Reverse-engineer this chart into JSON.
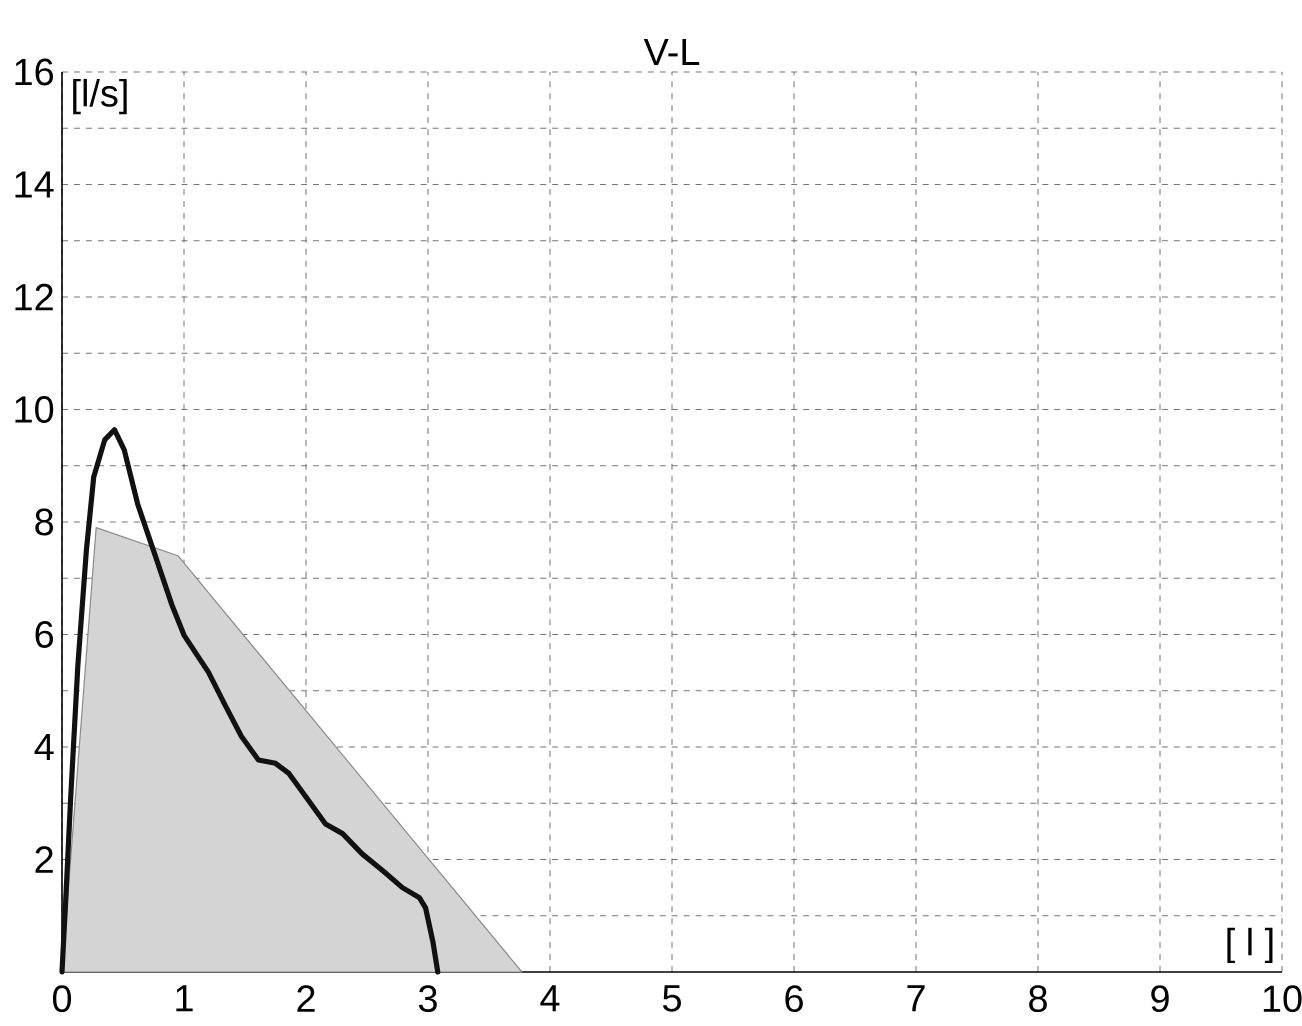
{
  "chart_data": {
    "type": "line",
    "title": "V-L",
    "xlabel": "[ l ]",
    "ylabel": "[l/s]",
    "xlim": [
      0,
      10
    ],
    "ylim": [
      0,
      16
    ],
    "xticks": [
      0,
      1,
      2,
      3,
      4,
      5,
      6,
      7,
      8,
      9,
      10
    ],
    "yticks": [
      {
        "value": 1,
        "label": null
      },
      2,
      {
        "value": 3,
        "label": null
      },
      4,
      {
        "value": 5,
        "label": null
      },
      6,
      {
        "value": 7,
        "label": null
      },
      8,
      {
        "value": 9,
        "label": null
      },
      10,
      {
        "value": 11,
        "label": null
      },
      12,
      {
        "value": 13,
        "label": null
      },
      14,
      {
        "value": 15,
        "label": null
      },
      16
    ],
    "grid": true,
    "series": [
      {
        "type": "area",
        "color": "#d4d4d4",
        "x": [
          0,
          0.28,
          0.95,
          3.77
        ],
        "values": [
          0,
          7.9,
          7.4,
          0
        ]
      },
      {
        "color": "#111111",
        "x": [
          0,
          0.03,
          0.07,
          0.13,
          0.2,
          0.26,
          0.35,
          0.43,
          0.51,
          0.62,
          0.76,
          0.9,
          1.0,
          1.09,
          1.2,
          1.34,
          1.47,
          1.61,
          1.75,
          1.86,
          2.0,
          2.16,
          2.3,
          2.46,
          2.63,
          2.79,
          2.93,
          2.98,
          3.04,
          3.08
        ],
        "values": [
          0,
          1.26,
          3.05,
          5.45,
          7.5,
          8.8,
          9.46,
          9.64,
          9.28,
          8.32,
          7.43,
          6.53,
          5.99,
          5.69,
          5.33,
          4.73,
          4.19,
          3.77,
          3.71,
          3.53,
          3.11,
          2.63,
          2.46,
          2.1,
          1.8,
          1.5,
          1.32,
          1.14,
          0.54,
          0
        ]
      }
    ]
  }
}
